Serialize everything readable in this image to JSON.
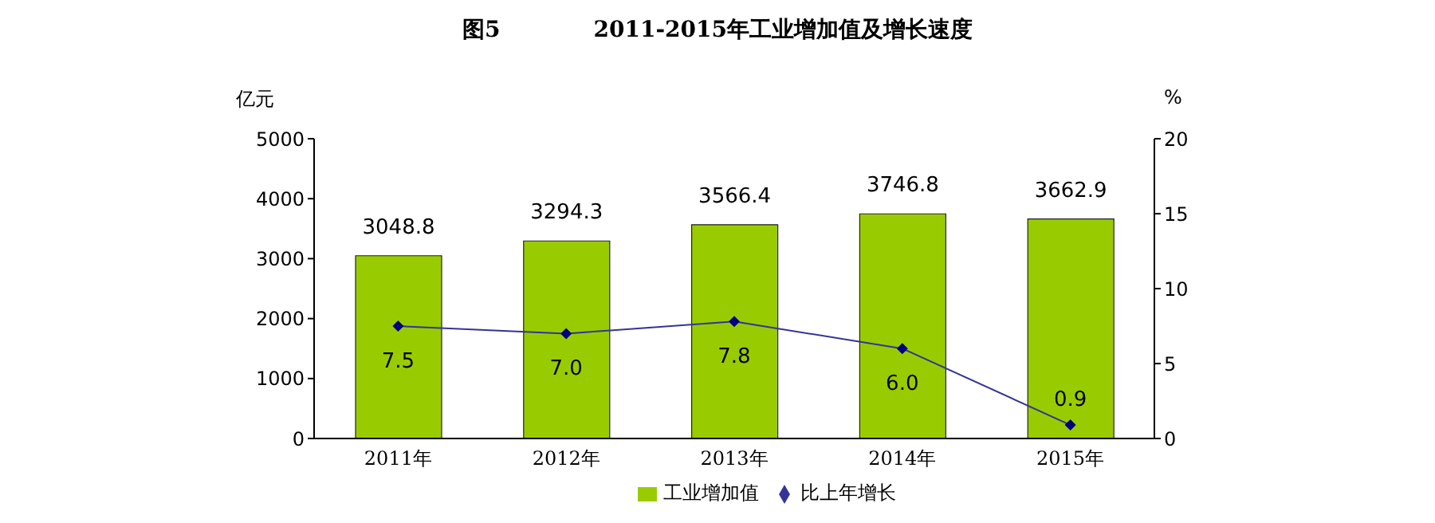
{
  "chart_data": {
    "type": "bar",
    "title": "图5            2011-2015年工业增加值及增长速度",
    "categories": [
      "2011年",
      "2012年",
      "2013年",
      "2014年",
      "2015年"
    ],
    "series": [
      {
        "name": "工业增加值",
        "color": "#99cc00",
        "values": [
          3048.8,
          3294.3,
          3566.4,
          3746.8,
          3662.9
        ]
      },
      {
        "name": "比上年增长",
        "type": "line",
        "axis": "y2",
        "color": "#333399",
        "values": [
          7.5,
          7.0,
          7.8,
          6.0,
          0.9
        ],
        "value_labels": [
          "7.5",
          "7.0",
          "7.8",
          "6.0",
          "0.9"
        ]
      }
    ],
    "ylabel": "亿元",
    "y2label": "%",
    "ylim": [
      0,
      5000
    ],
    "yticks": [
      0,
      1000,
      2000,
      3000,
      4000,
      5000
    ],
    "y2lim": [
      0,
      20
    ],
    "y2ticks": [
      0,
      5,
      10,
      15,
      20
    ],
    "data_labels": true,
    "legend": "bottom",
    "grid": false,
    "marker": "diamond",
    "line_style": "solid"
  }
}
